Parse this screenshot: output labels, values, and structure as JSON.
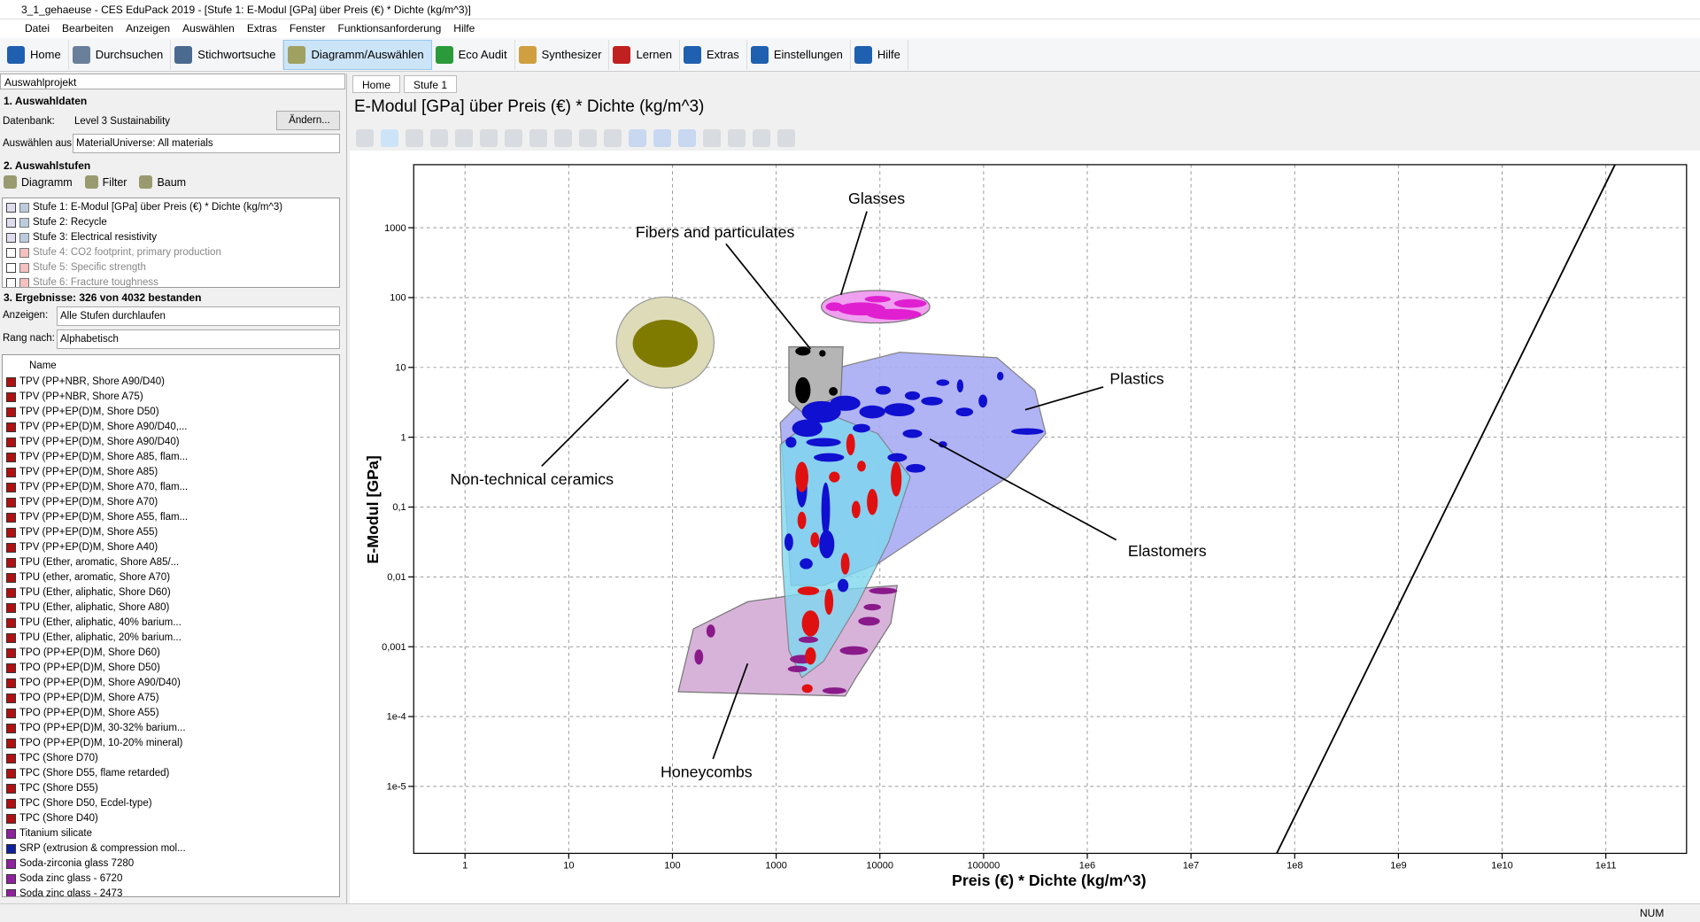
{
  "window": {
    "title": "3_1_gehaeuse - CES EduPack 2019 - [Stufe 1: E-Modul [GPa] über Preis (€) * Dichte (kg/m^3)]"
  },
  "menu": [
    "Datei",
    "Bearbeiten",
    "Anzeigen",
    "Auswählen",
    "Extras",
    "Fenster",
    "Funktionsanforderung",
    "Hilfe"
  ],
  "toolbar": [
    {
      "label": "Home",
      "color": "#1f5fb0"
    },
    {
      "label": "Durchsuchen",
      "color": "#6a7f99"
    },
    {
      "label": "Stichwortsuche",
      "color": "#4a6a90"
    },
    {
      "label": "Diagramm/Auswählen",
      "color": "#a0a060",
      "selected": true
    },
    {
      "label": "Eco Audit",
      "color": "#2a9a3a"
    },
    {
      "label": "Synthesizer",
      "color": "#d0a040"
    },
    {
      "label": "Lernen",
      "color": "#c02020"
    },
    {
      "label": "Extras",
      "color": "#2060b0"
    },
    {
      "label": "Einstellungen",
      "color": "#2060b0"
    },
    {
      "label": "Hilfe",
      "color": "#2060b0"
    }
  ],
  "left_panel": {
    "header": "Auswahlprojekt",
    "section1": {
      "title": "1. Auswahldaten",
      "database_label": "Datenbank:",
      "database": "Level 3 Sustainability",
      "change_button": "Ändern...",
      "select_from_label": "Auswählen aus:",
      "select_from": "MaterialUniverse: All materials"
    },
    "section2": {
      "title": "2. Auswahlstufen",
      "buttons": [
        "Diagramm",
        "Filter",
        "Baum"
      ],
      "stages": [
        {
          "label": "Stufe 1: E-Modul [GPa] über Preis (€) * Dichte (kg/m^3)",
          "checked": true
        },
        {
          "label": "Stufe 2: Recycle",
          "checked": true
        },
        {
          "label": "Stufe 3: Electrical resistivity",
          "checked": true
        },
        {
          "label": "Stufe 4: CO2 footprint, primary production",
          "checked": false
        },
        {
          "label": "Stufe 5: Specific strength",
          "checked": false
        },
        {
          "label": "Stufe 6: Fracture toughness",
          "checked": false
        }
      ]
    },
    "section3": {
      "title": "3. Ergebnisse: 326 von 4032 bestanden",
      "show_label": "Anzeigen:",
      "show": "Alle Stufen durchlaufen",
      "rank_label": "Rang nach:",
      "rank": "Alphabetisch",
      "column": "Name",
      "results": [
        {
          "name": "TPV (PP+NBR, Shore A90/D40)",
          "color": "#b01010"
        },
        {
          "name": "TPV (PP+NBR, Shore A75)",
          "color": "#b01010"
        },
        {
          "name": "TPV (PP+EP(D)M, Shore D50)",
          "color": "#b01010"
        },
        {
          "name": "TPV (PP+EP(D)M, Shore A90/D40,...",
          "color": "#b01010"
        },
        {
          "name": "TPV (PP+EP(D)M, Shore A90/D40)",
          "color": "#b01010"
        },
        {
          "name": "TPV (PP+EP(D)M, Shore A85, flam...",
          "color": "#b01010"
        },
        {
          "name": "TPV (PP+EP(D)M, Shore A85)",
          "color": "#b01010"
        },
        {
          "name": "TPV (PP+EP(D)M, Shore A70, flam...",
          "color": "#b01010"
        },
        {
          "name": "TPV (PP+EP(D)M, Shore A70)",
          "color": "#b01010"
        },
        {
          "name": "TPV (PP+EP(D)M, Shore A55, flam...",
          "color": "#b01010"
        },
        {
          "name": "TPV (PP+EP(D)M, Shore A55)",
          "color": "#b01010"
        },
        {
          "name": "TPV (PP+EP(D)M, Shore A40)",
          "color": "#b01010"
        },
        {
          "name": "TPU (Ether, aromatic, Shore A85/...",
          "color": "#b01010"
        },
        {
          "name": "TPU (ether, aromatic, Shore A70)",
          "color": "#b01010"
        },
        {
          "name": "TPU (Ether, aliphatic, Shore D60)",
          "color": "#b01010"
        },
        {
          "name": "TPU (Ether, aliphatic, Shore A80)",
          "color": "#b01010"
        },
        {
          "name": "TPU (Ether, aliphatic, 40% barium...",
          "color": "#b01010"
        },
        {
          "name": "TPU (Ether, aliphatic, 20% barium...",
          "color": "#b01010"
        },
        {
          "name": "TPO (PP+EP(D)M, Shore D60)",
          "color": "#b01010"
        },
        {
          "name": "TPO (PP+EP(D)M, Shore D50)",
          "color": "#b01010"
        },
        {
          "name": "TPO (PP+EP(D)M, Shore A90/D40)",
          "color": "#b01010"
        },
        {
          "name": "TPO (PP+EP(D)M, Shore A75)",
          "color": "#b01010"
        },
        {
          "name": "TPO (PP+EP(D)M, Shore A55)",
          "color": "#b01010"
        },
        {
          "name": "TPO (PP+EP(D)M, 30-32% barium...",
          "color": "#b01010"
        },
        {
          "name": "TPO (PP+EP(D)M, 10-20% mineral)",
          "color": "#b01010"
        },
        {
          "name": "TPC (Shore D70)",
          "color": "#b01010"
        },
        {
          "name": "TPC (Shore D55, flame retarded)",
          "color": "#b01010"
        },
        {
          "name": "TPC (Shore D55)",
          "color": "#b01010"
        },
        {
          "name": "TPC (Shore D50, Ecdel-type)",
          "color": "#b01010"
        },
        {
          "name": "TPC (Shore D40)",
          "color": "#b01010"
        },
        {
          "name": "Titanium silicate",
          "color": "#9020a0"
        },
        {
          "name": "SRP (extrusion & compression mol...",
          "color": "#1020a0"
        },
        {
          "name": "Soda-zirconia glass 7280",
          "color": "#9020a0"
        },
        {
          "name": "Soda zinc glass - 6720",
          "color": "#9020a0"
        },
        {
          "name": "Soda zinc glass - 2473",
          "color": "#9020a0"
        }
      ]
    }
  },
  "tabs": [
    "Home",
    "Stufe 1"
  ],
  "chart_data": {
    "type": "scatter",
    "title": "E-Modul [GPa] über Preis (€) * Dichte (kg/m^3)",
    "x_label": "Preis (€) * Dichte (kg/m^3)",
    "y_label": "E-Modul [GPa]",
    "x_log": true,
    "y_log": true,
    "grid": true,
    "xlim": [
      0.32,
      600000000000
    ],
    "ylim": [
      1.1e-06,
      8000
    ],
    "xticks": [
      1,
      10,
      100,
      1000,
      10000,
      100000,
      {
        "value": 1000000,
        "label": "1e6"
      },
      {
        "value": 10000000,
        "label": "1e7"
      },
      {
        "value": 100000000,
        "label": "1e8"
      },
      {
        "value": 1000000000,
        "label": "1e9"
      },
      {
        "value": 10000000000,
        "label": "1e10"
      },
      {
        "value": 100000000000,
        "label": "1e11"
      }
    ],
    "yticks": [
      {
        "value": 1e-05,
        "label": "1e-5"
      },
      {
        "value": 0.0001,
        "label": "1e-4"
      },
      {
        "value": 0.001,
        "label": "0,001"
      },
      {
        "value": 0.01,
        "label": "0,01"
      },
      {
        "value": 0.1,
        "label": "0,1"
      },
      1,
      10,
      100,
      1000
    ],
    "annotations": [
      "Glasses",
      "Fibers and particulates",
      "Plastics",
      "Non-technical ceramics",
      "Elastomers",
      "Honeycombs"
    ]
  },
  "status": "NUM"
}
